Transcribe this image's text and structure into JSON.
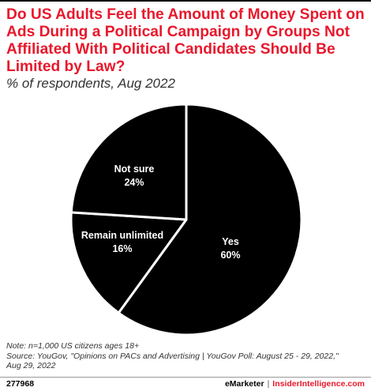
{
  "chart_data": {
    "type": "pie",
    "title": "Do US Adults Feel the Amount of Money Spent on Ads During a Political Campaign by Groups Not Affiliated With Political Candidates Should Be Limited by Law?",
    "subtitle": "% of respondents, Aug 2022",
    "slices": [
      {
        "label": "Yes",
        "value": 60,
        "value_label": "60%"
      },
      {
        "label": "Remain unlimited",
        "value": 16,
        "value_label": "16%"
      },
      {
        "label": "Not sure",
        "value": 24,
        "value_label": "24%"
      }
    ],
    "colors": {
      "slice": "#000000",
      "border": "#ffffff",
      "label": "#ffffff"
    }
  },
  "notes": {
    "line1": "Note: n=1,000 US citizens ages 18+",
    "line2": "Source: YouGov, \"Opinions on PACs and Advertising | YouGov Poll: August 25 - 29, 2022,\"",
    "line3": "Aug 29, 2022"
  },
  "footer": {
    "chart_id": "277968",
    "brand": "eMarketer",
    "separator": "|",
    "brand2": "InsiderIntelligence.com"
  },
  "colors": {
    "title": "#e8182c",
    "accent": "#e8182c"
  }
}
